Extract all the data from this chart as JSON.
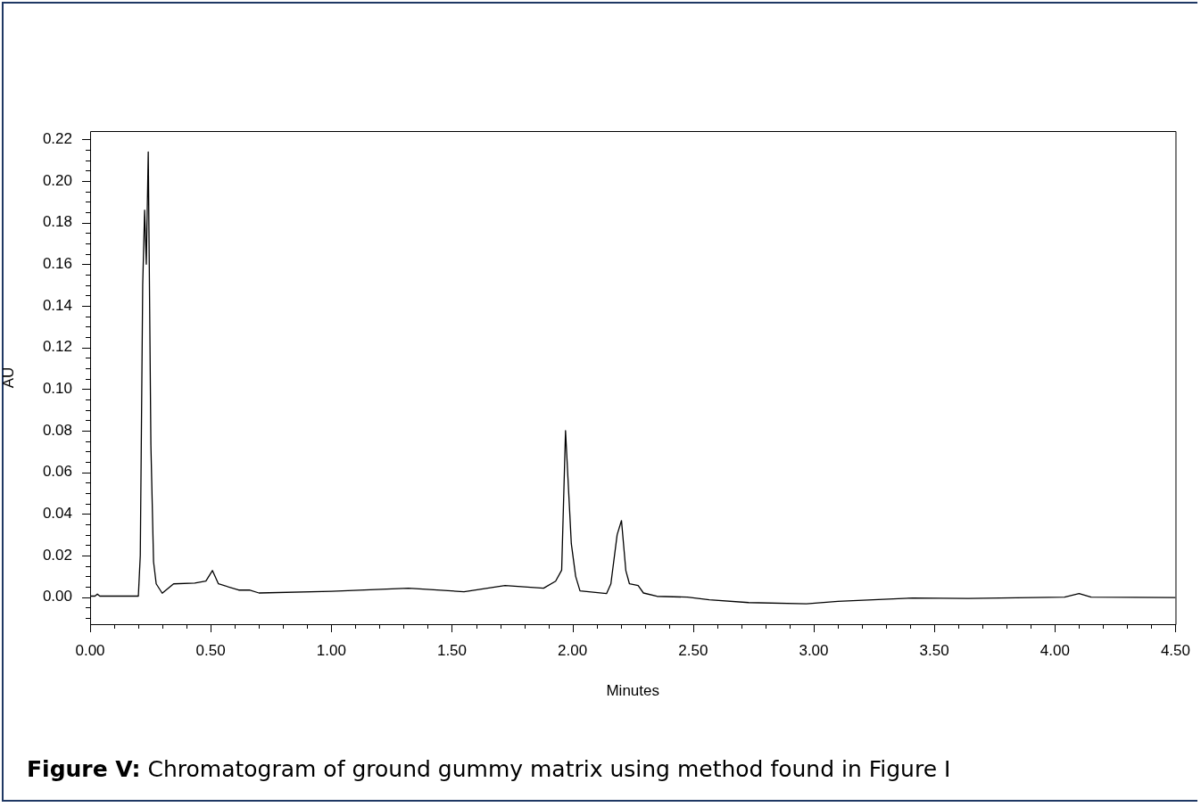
{
  "chart_data": {
    "type": "line",
    "xlabel": "Minutes",
    "ylabel": "AU",
    "annotations": [
      "Figure V: Chromatogram of ground gummy matrix using method found in Figure I"
    ],
    "xlim": [
      0,
      4.5
    ],
    "ylim": [
      -0.013,
      0.224
    ],
    "xticks": [
      {
        "value": 0,
        "label": "0.00"
      },
      {
        "value": 0.1,
        "label": null
      },
      {
        "value": 0.2,
        "label": null
      },
      {
        "value": 0.3,
        "label": null
      },
      {
        "value": 0.4,
        "label": null
      },
      {
        "value": 0.5,
        "label": "0.50"
      },
      {
        "value": 0.6,
        "label": null
      },
      {
        "value": 0.7,
        "label": null
      },
      {
        "value": 0.8,
        "label": null
      },
      {
        "value": 0.9,
        "label": null
      },
      {
        "value": 1,
        "label": "1.00"
      },
      {
        "value": 1.1,
        "label": null
      },
      {
        "value": 1.2,
        "label": null
      },
      {
        "value": 1.3,
        "label": null
      },
      {
        "value": 1.4,
        "label": null
      },
      {
        "value": 1.5,
        "label": "1.50"
      },
      {
        "value": 1.6,
        "label": null
      },
      {
        "value": 1.7,
        "label": null
      },
      {
        "value": 1.8,
        "label": null
      },
      {
        "value": 1.9,
        "label": null
      },
      {
        "value": 2,
        "label": "2.00"
      },
      {
        "value": 2.1,
        "label": null
      },
      {
        "value": 2.2,
        "label": null
      },
      {
        "value": 2.3,
        "label": null
      },
      {
        "value": 2.4,
        "label": null
      },
      {
        "value": 2.5,
        "label": "2.50"
      },
      {
        "value": 2.6,
        "label": null
      },
      {
        "value": 2.7,
        "label": null
      },
      {
        "value": 2.8,
        "label": null
      },
      {
        "value": 2.9,
        "label": null
      },
      {
        "value": 3,
        "label": "3.00"
      },
      {
        "value": 3.1,
        "label": null
      },
      {
        "value": 3.2,
        "label": null
      },
      {
        "value": 3.3,
        "label": null
      },
      {
        "value": 3.4,
        "label": null
      },
      {
        "value": 3.5,
        "label": "3.50"
      },
      {
        "value": 3.6,
        "label": null
      },
      {
        "value": 3.7,
        "label": null
      },
      {
        "value": 3.8,
        "label": null
      },
      {
        "value": 3.9,
        "label": null
      },
      {
        "value": 4,
        "label": "4.00"
      },
      {
        "value": 4.1,
        "label": null
      },
      {
        "value": 4.2,
        "label": null
      },
      {
        "value": 4.3,
        "label": null
      },
      {
        "value": 4.4,
        "label": null
      },
      {
        "value": 4.5,
        "label": "4.50"
      }
    ],
    "yticks": [
      {
        "value": -0.01,
        "label": null
      },
      {
        "value": -0.005,
        "label": null
      },
      {
        "value": 0,
        "label": "0.00"
      },
      {
        "value": 0.005,
        "label": null
      },
      {
        "value": 0.01,
        "label": null
      },
      {
        "value": 0.015,
        "label": null
      },
      {
        "value": 0.02,
        "label": "0.02"
      },
      {
        "value": 0.025,
        "label": null
      },
      {
        "value": 0.03,
        "label": null
      },
      {
        "value": 0.035,
        "label": null
      },
      {
        "value": 0.04,
        "label": "0.04"
      },
      {
        "value": 0.045,
        "label": null
      },
      {
        "value": 0.05,
        "label": null
      },
      {
        "value": 0.055,
        "label": null
      },
      {
        "value": 0.06,
        "label": "0.06"
      },
      {
        "value": 0.065,
        "label": null
      },
      {
        "value": 0.07,
        "label": null
      },
      {
        "value": 0.075,
        "label": null
      },
      {
        "value": 0.08,
        "label": "0.08"
      },
      {
        "value": 0.085,
        "label": null
      },
      {
        "value": 0.09,
        "label": null
      },
      {
        "value": 0.095,
        "label": null
      },
      {
        "value": 0.1,
        "label": "0.10"
      },
      {
        "value": 0.105,
        "label": null
      },
      {
        "value": 0.11,
        "label": null
      },
      {
        "value": 0.115,
        "label": null
      },
      {
        "value": 0.12,
        "label": "0.12"
      },
      {
        "value": 0.125,
        "label": null
      },
      {
        "value": 0.13,
        "label": null
      },
      {
        "value": 0.135,
        "label": null
      },
      {
        "value": 0.14,
        "label": "0.14"
      },
      {
        "value": 0.145,
        "label": null
      },
      {
        "value": 0.15,
        "label": null
      },
      {
        "value": 0.155,
        "label": null
      },
      {
        "value": 0.16,
        "label": "0.16"
      },
      {
        "value": 0.165,
        "label": null
      },
      {
        "value": 0.17,
        "label": null
      },
      {
        "value": 0.175,
        "label": null
      },
      {
        "value": 0.18,
        "label": "0.18"
      },
      {
        "value": 0.185,
        "label": null
      },
      {
        "value": 0.19,
        "label": null
      },
      {
        "value": 0.195,
        "label": null
      },
      {
        "value": 0.2,
        "label": "0.20"
      },
      {
        "value": 0.205,
        "label": null
      },
      {
        "value": 0.21,
        "label": null
      },
      {
        "value": 0.215,
        "label": null
      },
      {
        "value": 0.22,
        "label": "0.22"
      }
    ],
    "series": [
      {
        "color": "#000000",
        "x": [
          0,
          0.02,
          0.03,
          0.04,
          0.2,
          0.208,
          0.218,
          0.226,
          0.233,
          0.241,
          0.252,
          0.263,
          0.274,
          0.299,
          0.346,
          0.434,
          0.48,
          0.507,
          0.532,
          0.616,
          0.66,
          0.7,
          1.0,
          1.32,
          1.55,
          1.72,
          1.88,
          1.93,
          1.955,
          1.971,
          1.995,
          2.013,
          2.031,
          2.141,
          2.159,
          2.185,
          2.203,
          2.221,
          2.236,
          2.272,
          2.294,
          2.35,
          2.476,
          2.567,
          2.73,
          2.97,
          3.1,
          3.41,
          3.64,
          4.04,
          4.1,
          4.15,
          4.5
        ],
        "values": [
          0.0005,
          0.0005,
          0.0015,
          0.0005,
          0.0005,
          0.02,
          0.15,
          0.186,
          0.16,
          0.214,
          0.073,
          0.017,
          0.0064,
          0.0019,
          0.0064,
          0.0068,
          0.0077,
          0.0128,
          0.0064,
          0.0034,
          0.0034,
          0.002,
          0.0028,
          0.0043,
          0.0026,
          0.0056,
          0.0043,
          0.0077,
          0.013,
          0.08,
          0.0257,
          0.01,
          0.003,
          0.0017,
          0.0064,
          0.03,
          0.0368,
          0.0128,
          0.0064,
          0.0056,
          0.002,
          0.0004,
          0,
          -0.0013,
          -0.0026,
          -0.0032,
          -0.002,
          -0.0004,
          -0.0006,
          0,
          0.0017,
          0,
          -0.0002
        ]
      }
    ]
  }
}
